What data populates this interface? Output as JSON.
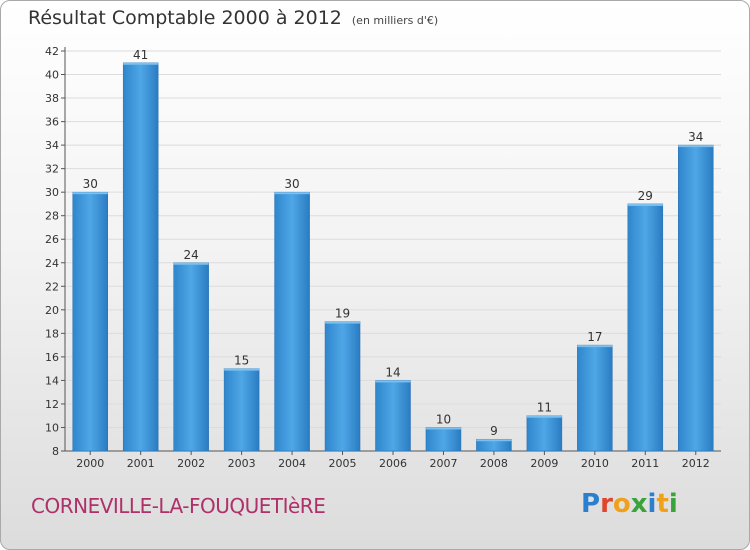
{
  "header": {
    "title": "Résultat Comptable 2000 à 2012",
    "subtitle": "(en milliers d'€)"
  },
  "footer": {
    "place": "CORNEVILLE-LA-FOUQUETIèRE",
    "logo": {
      "letters": [
        "P",
        "r",
        "o",
        "x",
        "i",
        "t",
        "i"
      ],
      "colors": [
        "#2a7fcf",
        "#e0462d",
        "#f0a11b",
        "#3aa33a",
        "#2a7fcf",
        "#f0a11b",
        "#3aa33a"
      ]
    }
  },
  "chart_data": {
    "type": "bar",
    "title": "Résultat Comptable 2000 à 2012",
    "xlabel": "",
    "ylabel": "",
    "categories": [
      "2000",
      "2001",
      "2002",
      "2003",
      "2004",
      "2005",
      "2006",
      "2007",
      "2008",
      "2009",
      "2010",
      "2011",
      "2012"
    ],
    "values": [
      30,
      41,
      24,
      15,
      30,
      19,
      14,
      10,
      9,
      11,
      17,
      29,
      34
    ],
    "ylim": [
      8,
      42
    ],
    "yticks": [
      8,
      10,
      12,
      14,
      16,
      18,
      20,
      22,
      24,
      26,
      28,
      30,
      32,
      34,
      36,
      38,
      40,
      42
    ],
    "grid": true,
    "bar_color": "#3a93d8"
  }
}
